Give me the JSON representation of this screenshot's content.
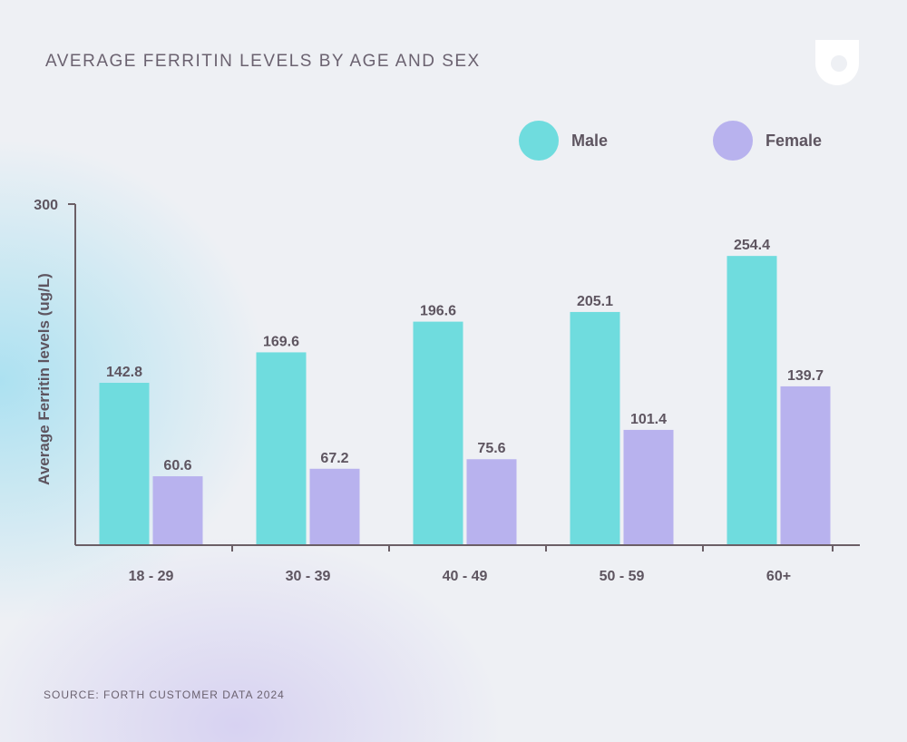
{
  "title": "AVERAGE FERRITIN LEVELS BY AGE AND SEX",
  "source": "SOURCE: FORTH CUSTOMER DATA 2024",
  "logo_icon": "forth-drop-logo-icon",
  "colors": {
    "male": "#6fdcde",
    "female": "#b8b2ee",
    "axis": "#6b5f66",
    "text": "#5e5560"
  },
  "legend": [
    {
      "name": "Male",
      "color": "#6fdcde"
    },
    {
      "name": "Female",
      "color": "#b8b2ee"
    }
  ],
  "chart_data": {
    "type": "bar",
    "title": "AVERAGE FERRITIN LEVELS BY AGE AND SEX",
    "xlabel": "",
    "ylabel": "Average Ferritin levels (ug/L)",
    "ylim": [
      0,
      300
    ],
    "yticks": [
      "300"
    ],
    "categories": [
      "18 - 29",
      "30 - 39",
      "40 - 49",
      "50 - 59",
      "60+"
    ],
    "series": [
      {
        "name": "Male",
        "values": [
          142.8,
          169.6,
          196.6,
          205.1,
          254.4
        ],
        "labels": [
          "142.8",
          "169.6",
          "196.6",
          "205.1",
          "254.4"
        ]
      },
      {
        "name": "Female",
        "values": [
          60.6,
          67.2,
          75.6,
          101.4,
          139.7
        ],
        "labels": [
          "60.6",
          "67.2",
          "75.6",
          "101.4",
          "139.7"
        ]
      }
    ],
    "legend_position": "top-right",
    "grid": false
  }
}
